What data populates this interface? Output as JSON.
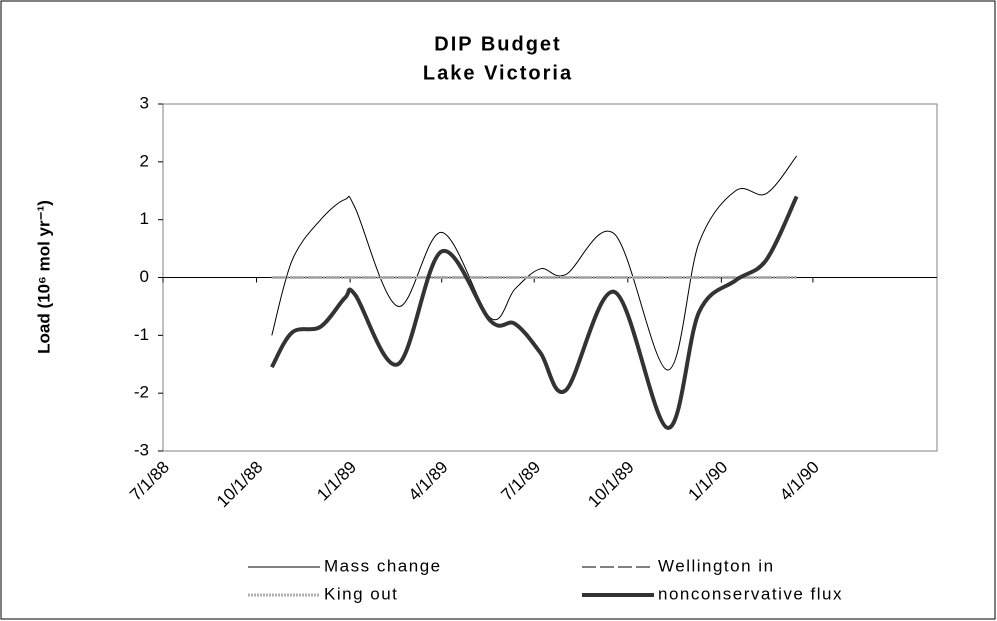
{
  "chart_data": {
    "type": "line",
    "title": [
      "DIP Budget",
      "Lake Victoria"
    ],
    "ylabel": "Load (10⁶ mol yr⁻¹)",
    "x": [
      "10/16/88",
      "11/5/88",
      "12/3/88",
      "12/27/88",
      "1/6/89",
      "2/17/89",
      "4/1/89",
      "5/19/89",
      "6/12/89",
      "7/7/89",
      "8/1/89",
      "9/18/89",
      "11/9/89",
      "12/10/89",
      "1/15/90",
      "2/14/90",
      "3/16/90"
    ],
    "series": [
      {
        "name": "Mass change",
        "color": "#000000",
        "style": "solid",
        "width": 1,
        "values": [
          -1.0,
          0.3,
          1.0,
          1.35,
          1.2,
          -0.5,
          0.78,
          -0.7,
          -0.2,
          0.15,
          0.05,
          0.75,
          -1.6,
          0.6,
          1.5,
          1.45,
          2.1
        ]
      },
      {
        "name": "Wellington in",
        "color": "#808080",
        "style": "dashed",
        "width": 2,
        "values": [
          0,
          0,
          0,
          0,
          0,
          0,
          0,
          0,
          0,
          0,
          0,
          0,
          0,
          0,
          0,
          0,
          0
        ]
      },
      {
        "name": "King out",
        "color": "#b0b0b0",
        "style": "dotted",
        "width": 3,
        "values": [
          0,
          0,
          0,
          0,
          0,
          0,
          0,
          0,
          0,
          0,
          0,
          0,
          0,
          0,
          0,
          0,
          0
        ]
      },
      {
        "name": "nonconservative flux",
        "color": "#333333",
        "style": "solid",
        "width": 4,
        "values": [
          -1.55,
          -0.95,
          -0.85,
          -0.35,
          -0.3,
          -1.5,
          0.45,
          -0.75,
          -0.8,
          -1.3,
          -1.95,
          -0.25,
          -2.6,
          -0.6,
          -0.05,
          0.3,
          1.4
        ]
      }
    ],
    "xlim": [
      "7/1/88",
      "8/1/90"
    ],
    "xticks": [
      "7/1/88",
      "10/1/88",
      "1/1/89",
      "4/1/89",
      "7/1/89",
      "10/1/89",
      "1/1/90",
      "4/1/90"
    ],
    "ylim": [
      -3,
      3
    ],
    "yticks": [
      -3,
      -2,
      -1,
      0,
      1,
      2,
      3
    ]
  }
}
